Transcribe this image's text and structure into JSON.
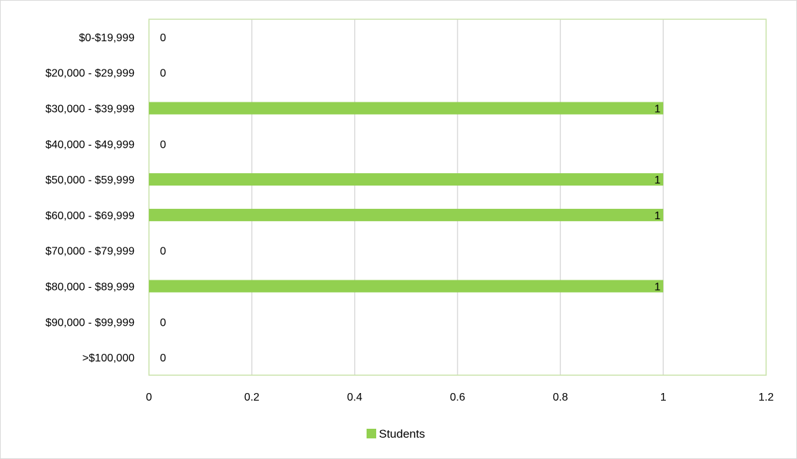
{
  "chart_data": {
    "type": "bar",
    "orientation": "horizontal",
    "categories": [
      "$0-$19,999",
      "$20,000 - $29,999",
      "$30,000 - $39,999",
      "$40,000 - $49,999",
      "$50,000 - $59,999",
      "$60,000 - $69,999",
      "$70,000 - $79,999",
      "$80,000 - $89,999",
      "$90,000 - $99,999",
      ">$100,000"
    ],
    "series": [
      {
        "name": "Students",
        "values": [
          0,
          0,
          1,
          0,
          1,
          1,
          0,
          1,
          0,
          0
        ],
        "color": "#92d050"
      }
    ],
    "xlim": [
      0,
      1.2
    ],
    "x_ticks": [
      0,
      0.2,
      0.4,
      0.6,
      0.8,
      1,
      1.2
    ],
    "x_tick_labels": [
      "0",
      "0.2",
      "0.4",
      "0.6",
      "0.8",
      "1",
      "1.2"
    ],
    "title": "",
    "xlabel": "",
    "ylabel": "",
    "grid": "vertical",
    "data_labels": true,
    "legend": "bottom",
    "plot_border_color": "#c9e2a8",
    "gridline_color": "#d9d9d9"
  }
}
